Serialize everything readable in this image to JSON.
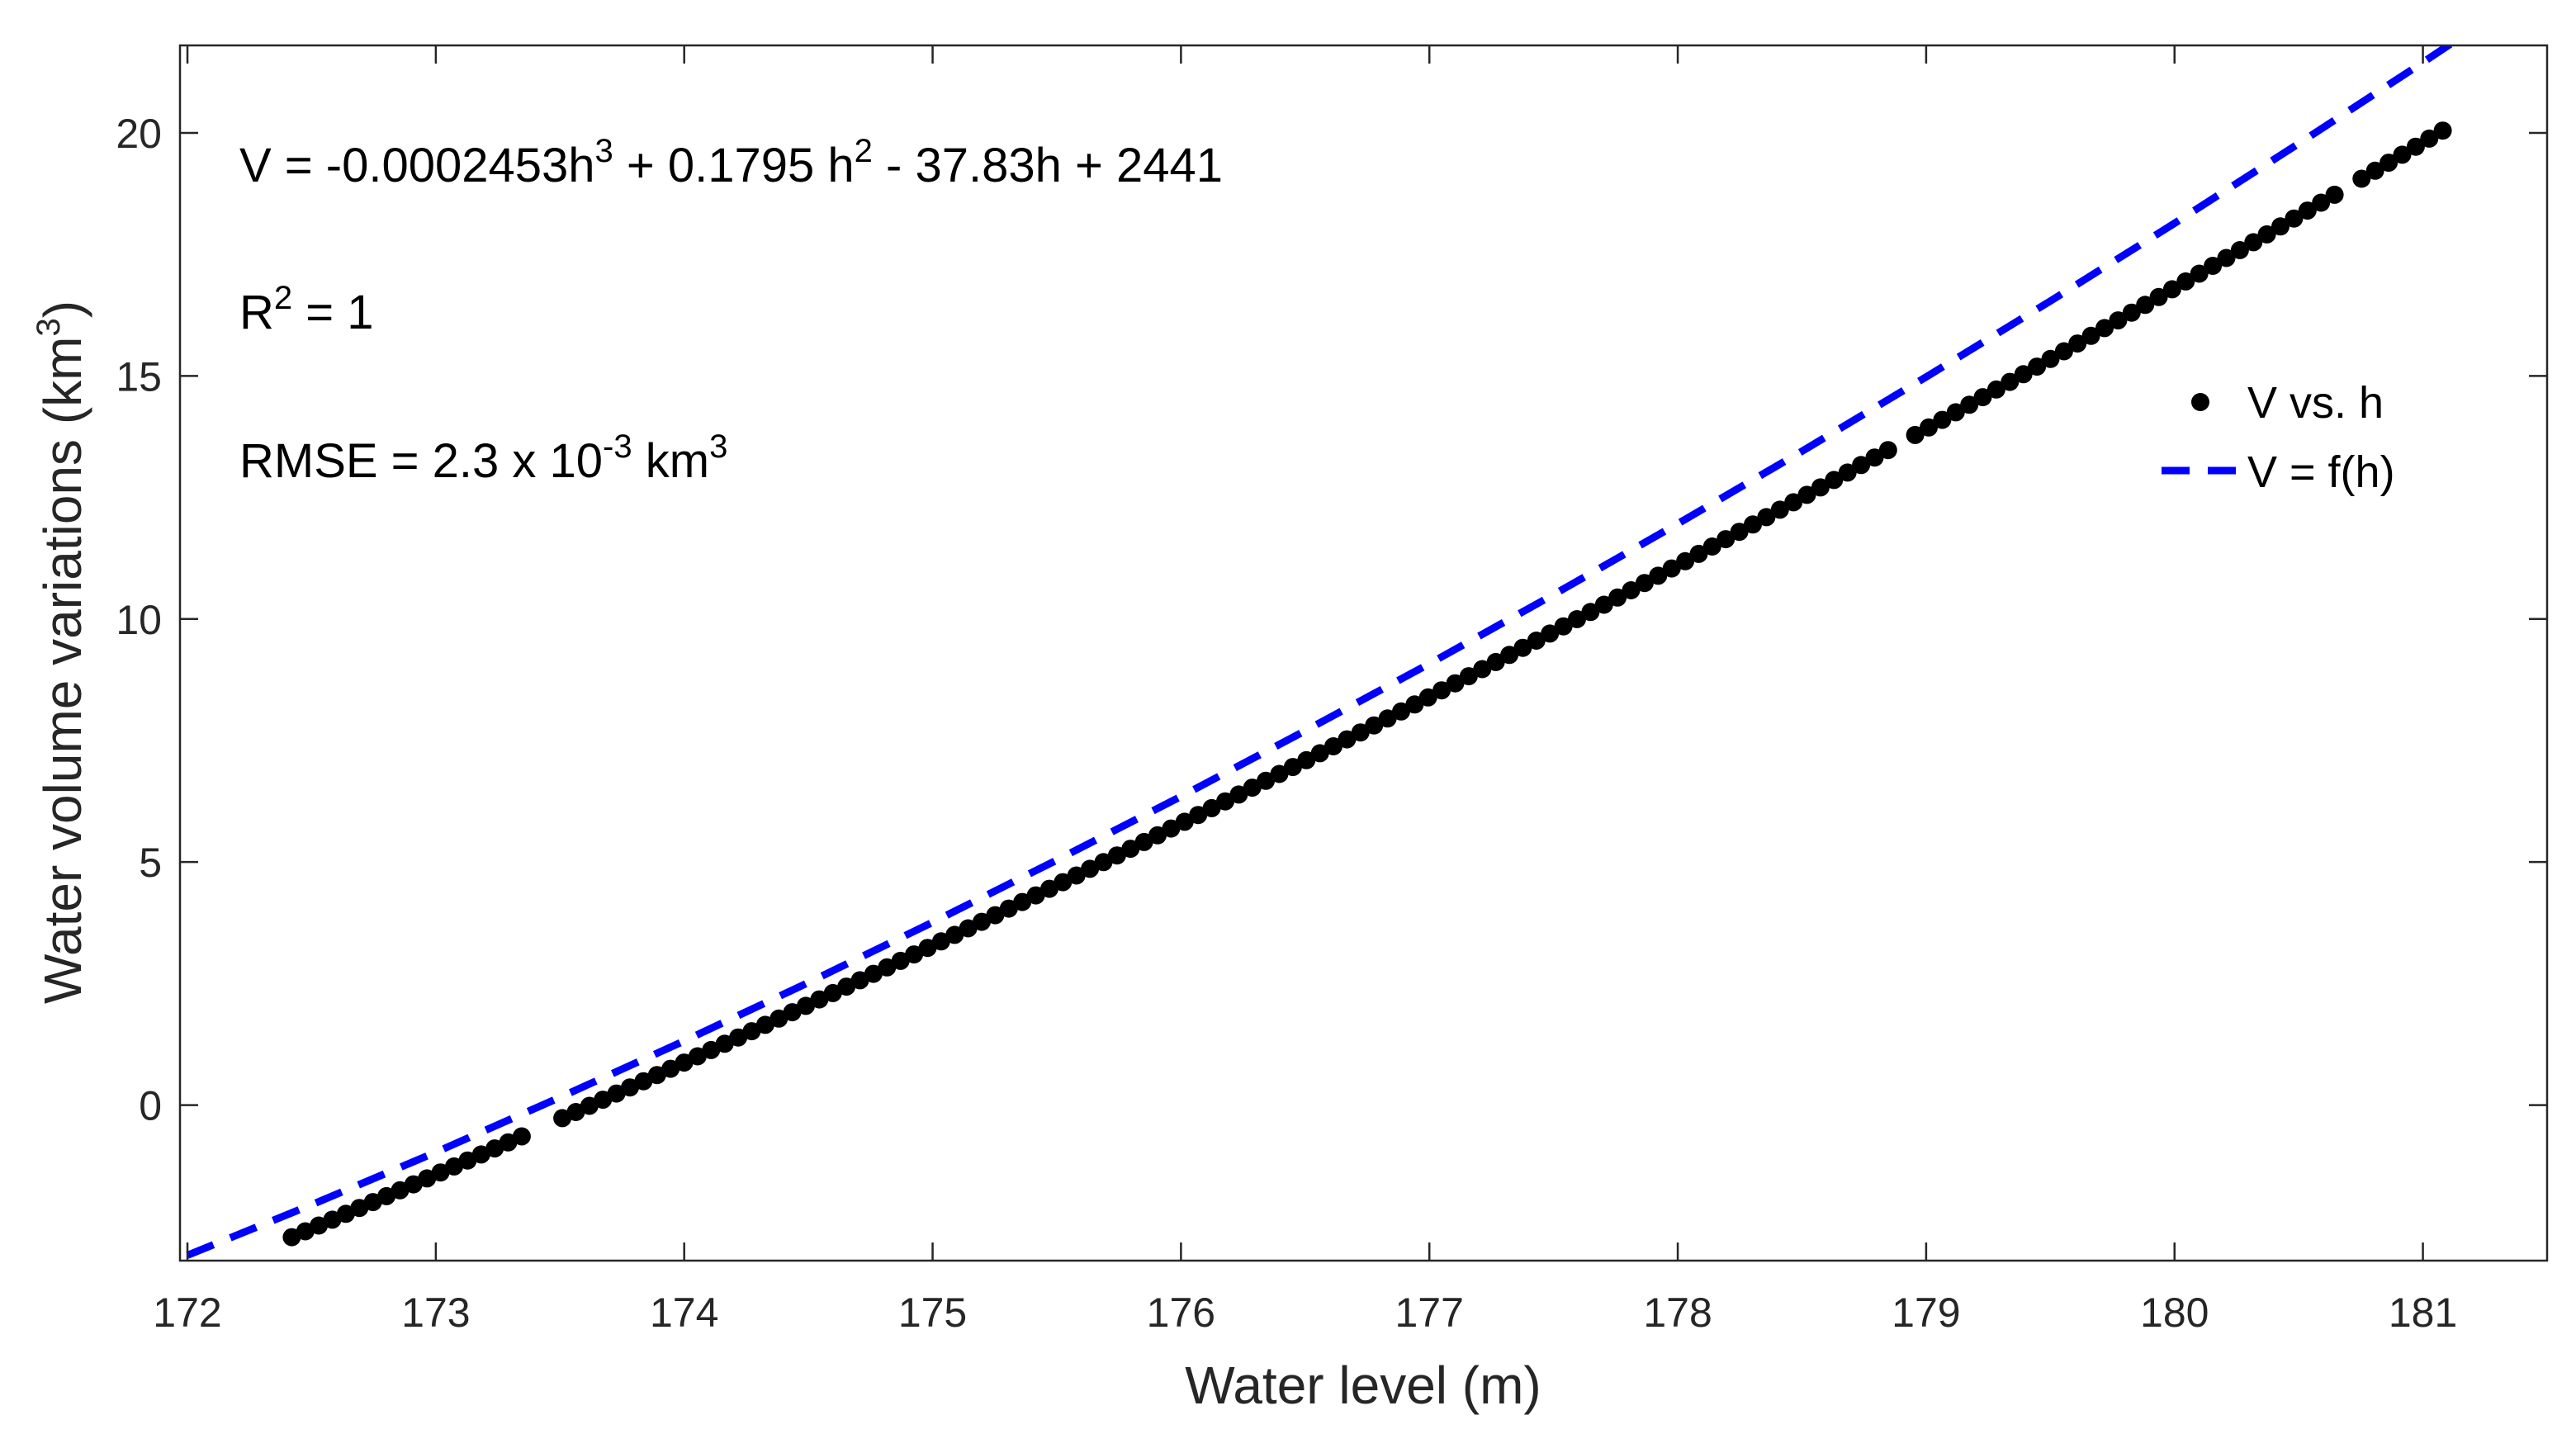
{
  "chart_data": {
    "type": "scatter",
    "xlabel": "Water level (m)",
    "ylabel": {
      "main": "Water volume variations (km",
      "sup": "3",
      "tail": ")"
    },
    "xlim": [
      171.97,
      181.5
    ],
    "ylim": [
      -3.2,
      21.8
    ],
    "xticks": [
      "172",
      "173",
      "174",
      "175",
      "176",
      "177",
      "178",
      "179",
      "180",
      "181"
    ],
    "yticks": [
      "0",
      "5",
      "10",
      "15",
      "20"
    ],
    "grid": false,
    "legend_position": "right",
    "series": [
      {
        "name": "V vs. h",
        "kind": "points",
        "color": "#000000",
        "h_range": [
          172.42,
          181.08
        ],
        "gaps": [
          [
            173.36,
            173.48
          ],
          [
            178.87,
            178.95
          ],
          [
            180.66,
            180.75
          ]
        ],
        "point_count": 160
      },
      {
        "name": "V = f(h)",
        "kind": "fit-line",
        "color": "#0000ff",
        "h_range": [
          171.97,
          181.5
        ],
        "coefficients": {
          "a3": -0.0002453,
          "a2": 0.1795,
          "a1": -37.83,
          "a0": 2441
        },
        "samples": [
          [
            172.0,
            -3.09
          ],
          [
            172.5,
            -2.05
          ],
          [
            173.0,
            -0.97
          ],
          [
            173.5,
            0.16
          ],
          [
            174.0,
            1.32
          ],
          [
            174.5,
            2.52
          ],
          [
            175.0,
            3.76
          ],
          [
            175.5,
            5.04
          ],
          [
            176.0,
            6.35
          ],
          [
            176.5,
            7.7
          ],
          [
            177.0,
            9.08
          ],
          [
            177.5,
            10.5
          ],
          [
            178.0,
            11.96
          ],
          [
            178.5,
            13.45
          ],
          [
            179.0,
            14.98
          ],
          [
            179.5,
            16.54
          ],
          [
            180.0,
            18.14
          ],
          [
            180.5,
            19.78
          ],
          [
            181.0,
            21.45
          ],
          [
            181.5,
            23.16
          ]
        ]
      }
    ],
    "annotations": {
      "equation": {
        "lead": "V = -0.0002453h",
        "sup1": "3",
        "mid": " + 0.1795 h",
        "sup2": "2",
        "tail": " - 37.83h + 2441"
      },
      "r2": {
        "lead": "R",
        "sup": "2",
        "tail": " = 1"
      },
      "rmse": {
        "lead": "RMSE = 2.3 x 10",
        "sup1": "-3",
        "mid": " km",
        "sup2": "3"
      }
    }
  }
}
